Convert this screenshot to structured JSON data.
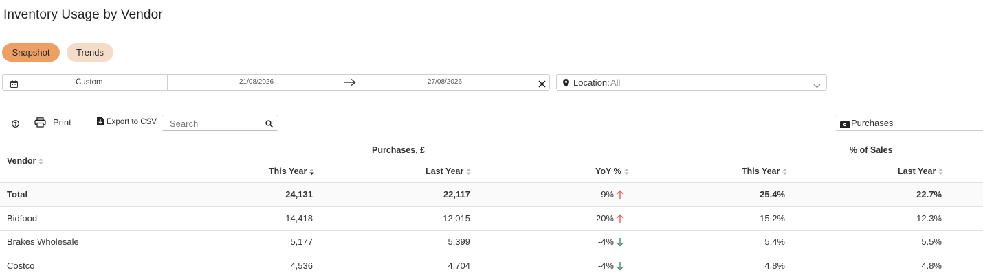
{
  "page": {
    "title": "Inventory Usage by Vendor"
  },
  "view_tabs": [
    {
      "label": "Snapshot",
      "active": true
    },
    {
      "label": "Trends",
      "active": false
    }
  ],
  "date_filter": {
    "range_label": "Custom",
    "start_date": "21/08/2026",
    "end_date": "27/08/2026"
  },
  "location_filter": {
    "label": "Location:",
    "value": "All"
  },
  "toolbar": {
    "print_label": "Print",
    "export_label": "Export to CSV",
    "search_placeholder": "Search",
    "metric_select": "Purchases"
  },
  "table": {
    "group_headers": {
      "purchases": "Purchases, £",
      "pct_sales": "% of Sales"
    },
    "columns": {
      "vendor": "Vendor",
      "this_year": "This Year",
      "last_year": "Last Year",
      "yoy": "YoY %",
      "pct_this_year": "This Year",
      "pct_last_year": "Last Year"
    },
    "rows": [
      {
        "vendor": "Total",
        "this_year": "24,131",
        "last_year": "22,117",
        "yoy": "9%",
        "trend": "up",
        "pct_this_year": "25.4%",
        "pct_last_year": "22.7%"
      },
      {
        "vendor": "Bidfood",
        "this_year": "14,418",
        "last_year": "12,015",
        "yoy": "20%",
        "trend": "up",
        "pct_this_year": "15.2%",
        "pct_last_year": "12.3%"
      },
      {
        "vendor": "Brakes Wholesale",
        "this_year": "5,177",
        "last_year": "5,399",
        "yoy": "-4%",
        "trend": "down",
        "pct_this_year": "5.4%",
        "pct_last_year": "5.5%"
      },
      {
        "vendor": "Costco",
        "this_year": "4,536",
        "last_year": "4,704",
        "yoy": "-4%",
        "trend": "down",
        "pct_this_year": "4.8%",
        "pct_last_year": "4.8%"
      }
    ]
  },
  "colors": {
    "accent": "#ee9f63",
    "accent_light": "#f3ddc9",
    "up": "#e05a5a",
    "down": "#3f8a6a"
  }
}
